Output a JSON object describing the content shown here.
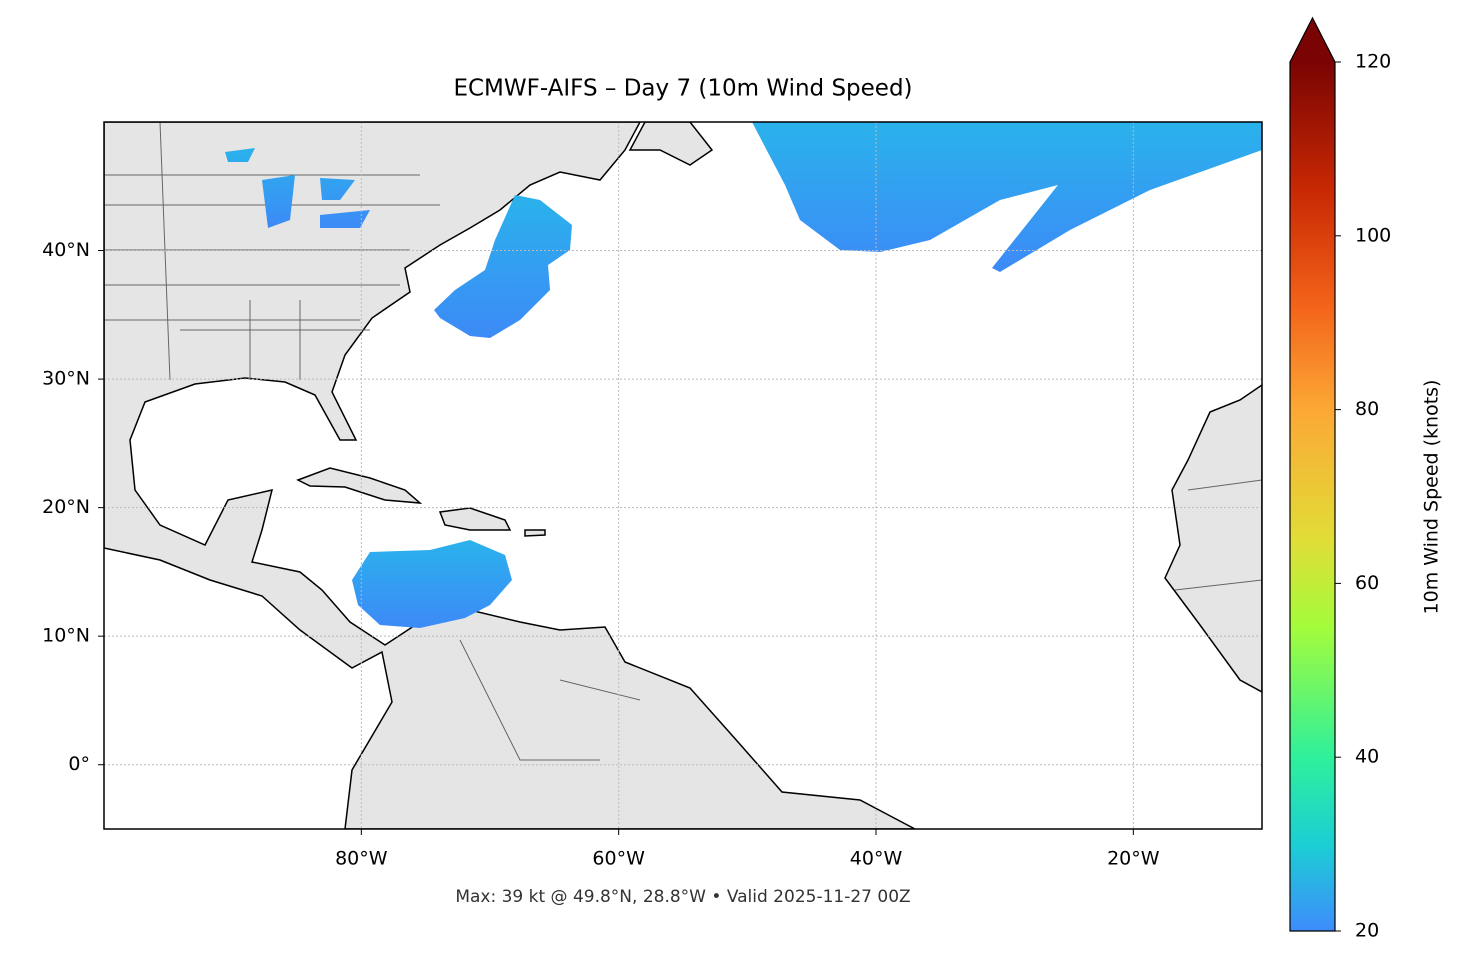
{
  "map": {
    "title": "ECMWF-AIFS – Day 7 (10m Wind Speed)",
    "footnote": "Max: 39 kt @ 49.8°N, 28.8°W • Valid 2025-11-27 00Z",
    "xlim": [
      -100,
      -10
    ],
    "ylim": [
      -5,
      50
    ],
    "xticks": [
      {
        "value": -80,
        "label": "80°W"
      },
      {
        "value": -60,
        "label": "60°W"
      },
      {
        "value": -40,
        "label": "40°W"
      },
      {
        "value": -20,
        "label": "20°W"
      }
    ],
    "yticks": [
      {
        "value": 0,
        "label": "0°"
      },
      {
        "value": 10,
        "label": "10°N"
      },
      {
        "value": 20,
        "label": "20°N"
      },
      {
        "value": 30,
        "label": "30°N"
      },
      {
        "value": 40,
        "label": "40°N"
      }
    ],
    "grid": true,
    "colorbar": {
      "label": "10m Wind Speed (knots)",
      "lim": [
        20,
        120
      ],
      "ticks": [
        20,
        40,
        60,
        80,
        100,
        120
      ]
    }
  }
}
